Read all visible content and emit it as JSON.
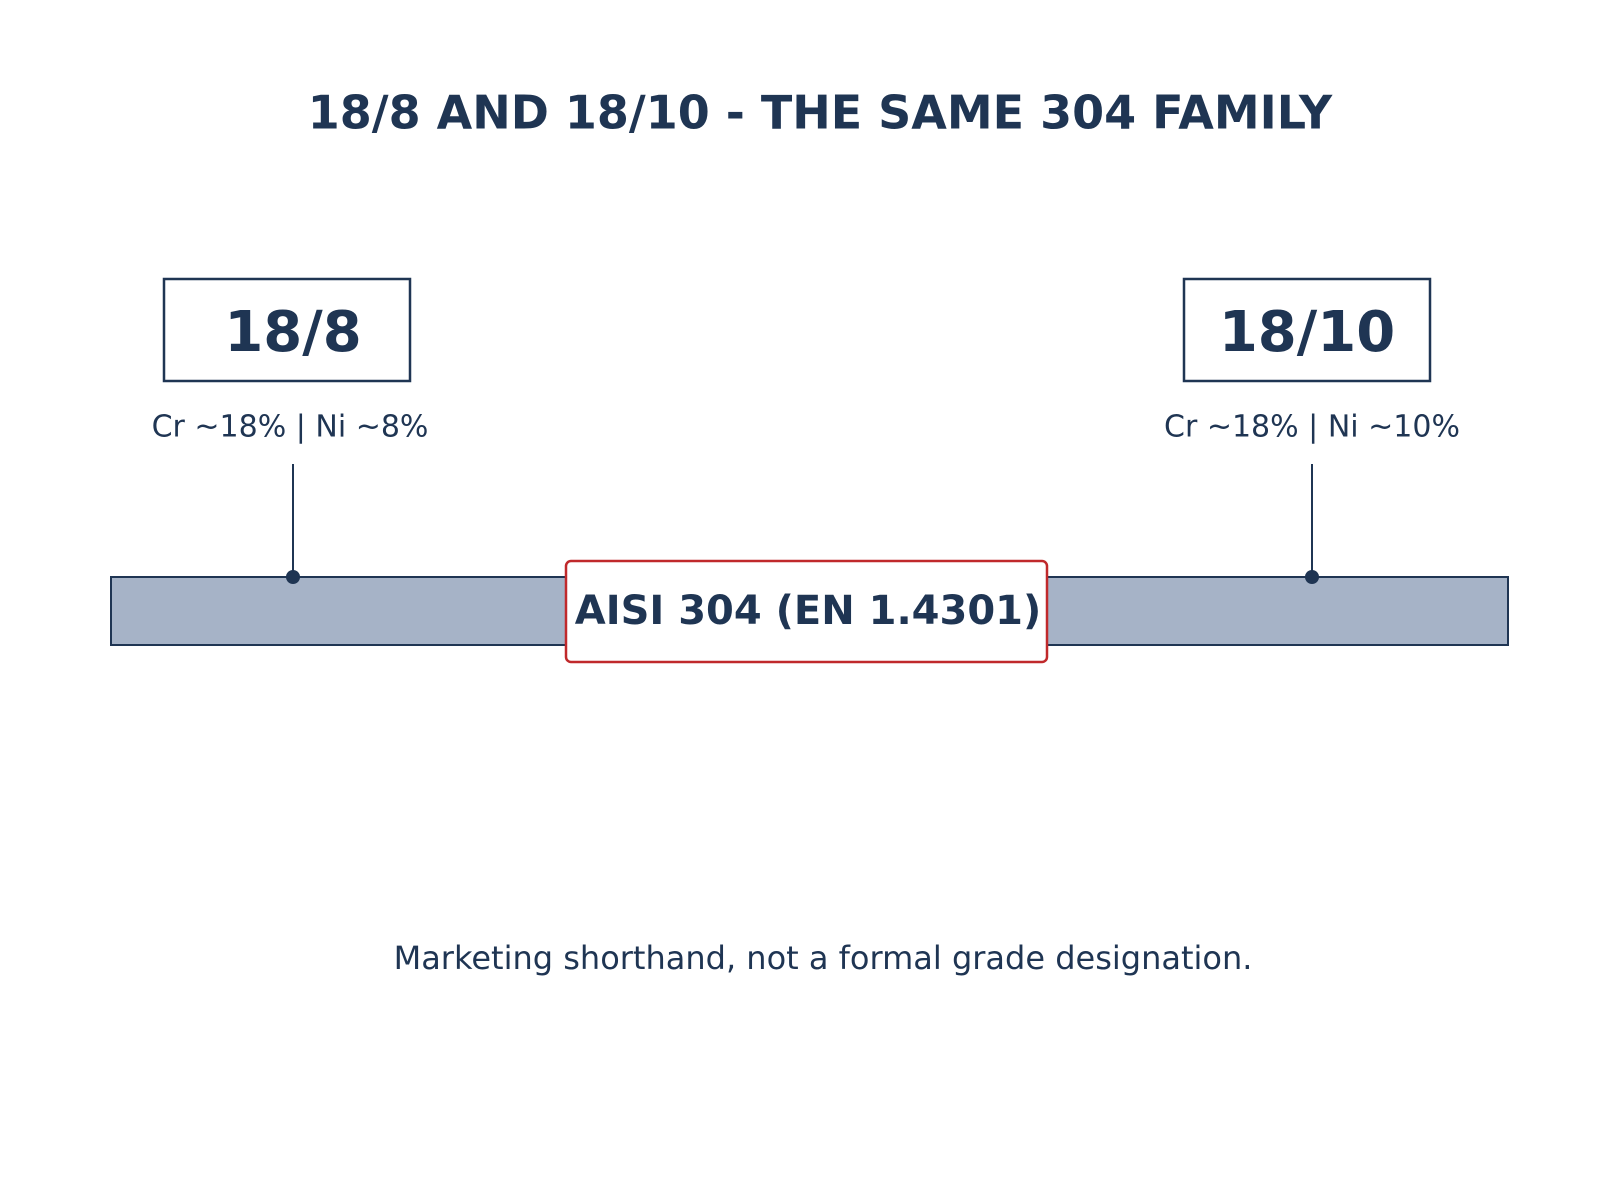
{
  "title": "18/8 AND 18/10 - THE SAME 304 FAMILY",
  "nodes": [
    {
      "label": "18/8",
      "composition": "Cr ~18% | Ni ~8%"
    },
    {
      "label": "18/10",
      "composition": "Cr ~18% | Ni ~10%"
    }
  ],
  "center": {
    "label": "AISI 304 (EN 1.4301)"
  },
  "footnote": "Marketing shorthand, not a formal grade designation."
}
